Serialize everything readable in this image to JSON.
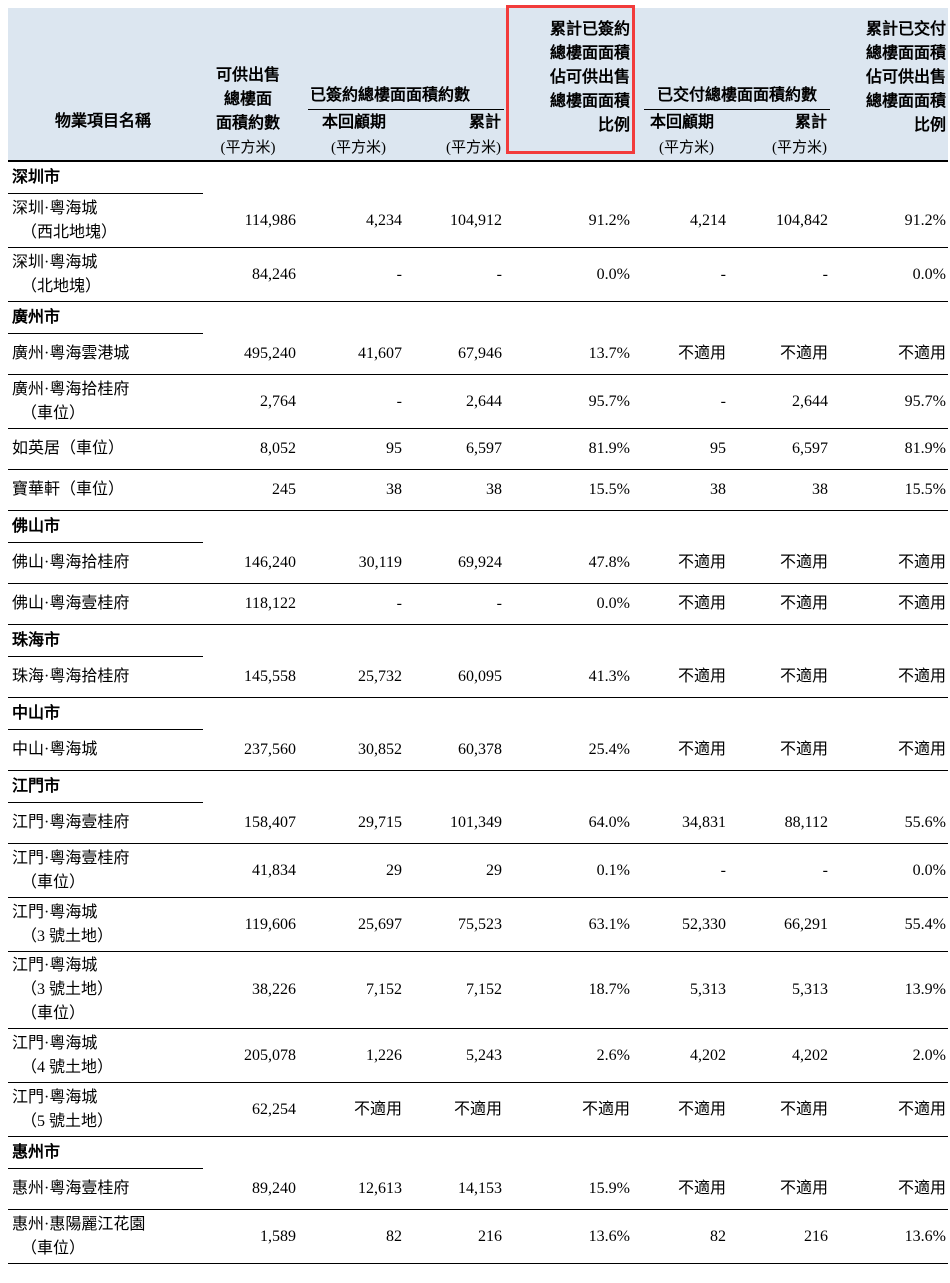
{
  "colors": {
    "header_bg": "#dce6f0",
    "highlight_box": "#f23b3b",
    "rule": "#000000"
  },
  "header": {
    "project": "物業項目名稱",
    "saleable": {
      "lines": [
        "可供出售",
        "總樓面",
        "面積約數"
      ],
      "unit": "(平方米)"
    },
    "contracted": {
      "title": "已簽約總樓面面積約數",
      "period": "本回顧期",
      "cumulative": "累計",
      "unit": "(平方米)"
    },
    "contracted_ratio": {
      "lines": [
        "累計已簽約",
        "總樓面面積",
        "佔可供出售",
        "總樓面面積",
        "比例"
      ],
      "highlighted": true
    },
    "delivered": {
      "title": "已交付總樓面面積約數",
      "period": "本回顧期",
      "cumulative": "累計",
      "unit": "(平方米)"
    },
    "delivered_ratio": {
      "lines": [
        "累計已交付",
        "總樓面面積",
        "佔可供出售",
        "總樓面面積",
        "比例"
      ]
    }
  },
  "sections": [
    {
      "city": "深圳市",
      "rows": [
        {
          "name_lines": [
            "深圳·粵海城",
            "（西北地塊）"
          ],
          "values": [
            "114,986",
            "4,234",
            "104,912",
            "91.2%",
            "4,214",
            "104,842",
            "91.2%"
          ]
        },
        {
          "name_lines": [
            "深圳·粵海城",
            "（北地塊）"
          ],
          "values": [
            "84,246",
            "-",
            "-",
            "0.0%",
            "-",
            "-",
            "0.0%"
          ]
        }
      ]
    },
    {
      "city": "廣州市",
      "rows": [
        {
          "name_lines": [
            "廣州·粵海雲港城"
          ],
          "values": [
            "495,240",
            "41,607",
            "67,946",
            "13.7%",
            "不適用",
            "不適用",
            "不適用"
          ]
        },
        {
          "name_lines": [
            "廣州·粵海拾桂府",
            "（車位）"
          ],
          "values": [
            "2,764",
            "-",
            "2,644",
            "95.7%",
            "-",
            "2,644",
            "95.7%"
          ]
        },
        {
          "name_lines": [
            "如英居（車位）"
          ],
          "values": [
            "8,052",
            "95",
            "6,597",
            "81.9%",
            "95",
            "6,597",
            "81.9%"
          ]
        },
        {
          "name_lines": [
            "寶華軒（車位）"
          ],
          "values": [
            "245",
            "38",
            "38",
            "15.5%",
            "38",
            "38",
            "15.5%"
          ]
        }
      ]
    },
    {
      "city": "佛山市",
      "rows": [
        {
          "name_lines": [
            "佛山·粵海拾桂府"
          ],
          "values": [
            "146,240",
            "30,119",
            "69,924",
            "47.8%",
            "不適用",
            "不適用",
            "不適用"
          ]
        },
        {
          "name_lines": [
            "佛山·粵海壹桂府"
          ],
          "values": [
            "118,122",
            "-",
            "-",
            "0.0%",
            "不適用",
            "不適用",
            "不適用"
          ]
        }
      ]
    },
    {
      "city": "珠海市",
      "rows": [
        {
          "name_lines": [
            "珠海·粵海拾桂府"
          ],
          "values": [
            "145,558",
            "25,732",
            "60,095",
            "41.3%",
            "不適用",
            "不適用",
            "不適用"
          ]
        }
      ]
    },
    {
      "city": "中山市",
      "rows": [
        {
          "name_lines": [
            "中山·粵海城"
          ],
          "values": [
            "237,560",
            "30,852",
            "60,378",
            "25.4%",
            "不適用",
            "不適用",
            "不適用"
          ]
        }
      ]
    },
    {
      "city": "江門市",
      "rows": [
        {
          "name_lines": [
            "江門·粵海壹桂府"
          ],
          "values": [
            "158,407",
            "29,715",
            "101,349",
            "64.0%",
            "34,831",
            "88,112",
            "55.6%"
          ]
        },
        {
          "name_lines": [
            "江門·粵海壹桂府",
            "（車位）"
          ],
          "values": [
            "41,834",
            "29",
            "29",
            "0.1%",
            "-",
            "-",
            "0.0%"
          ]
        },
        {
          "name_lines": [
            "江門·粵海城",
            "（3 號土地）"
          ],
          "values": [
            "119,606",
            "25,697",
            "75,523",
            "63.1%",
            "52,330",
            "66,291",
            "55.4%"
          ]
        },
        {
          "name_lines": [
            "江門·粵海城",
            "（3 號土地）",
            "（車位）"
          ],
          "values": [
            "38,226",
            "7,152",
            "7,152",
            "18.7%",
            "5,313",
            "5,313",
            "13.9%"
          ]
        },
        {
          "name_lines": [
            "江門·粵海城",
            "（4 號土地）"
          ],
          "values": [
            "205,078",
            "1,226",
            "5,243",
            "2.6%",
            "4,202",
            "4,202",
            "2.0%"
          ]
        },
        {
          "name_lines": [
            "江門·粵海城",
            "（5 號土地）"
          ],
          "values": [
            "62,254",
            "不適用",
            "不適用",
            "不適用",
            "不適用",
            "不適用",
            "不適用"
          ]
        }
      ]
    },
    {
      "city": "惠州市",
      "rows": [
        {
          "name_lines": [
            "惠州·粵海壹桂府"
          ],
          "values": [
            "89,240",
            "12,613",
            "14,153",
            "15.9%",
            "不適用",
            "不適用",
            "不適用"
          ]
        },
        {
          "name_lines": [
            "惠州·惠陽麗江花園",
            "（車位）"
          ],
          "values": [
            "1,589",
            "82",
            "216",
            "13.6%",
            "82",
            "216",
            "13.6%"
          ]
        }
      ]
    }
  ]
}
